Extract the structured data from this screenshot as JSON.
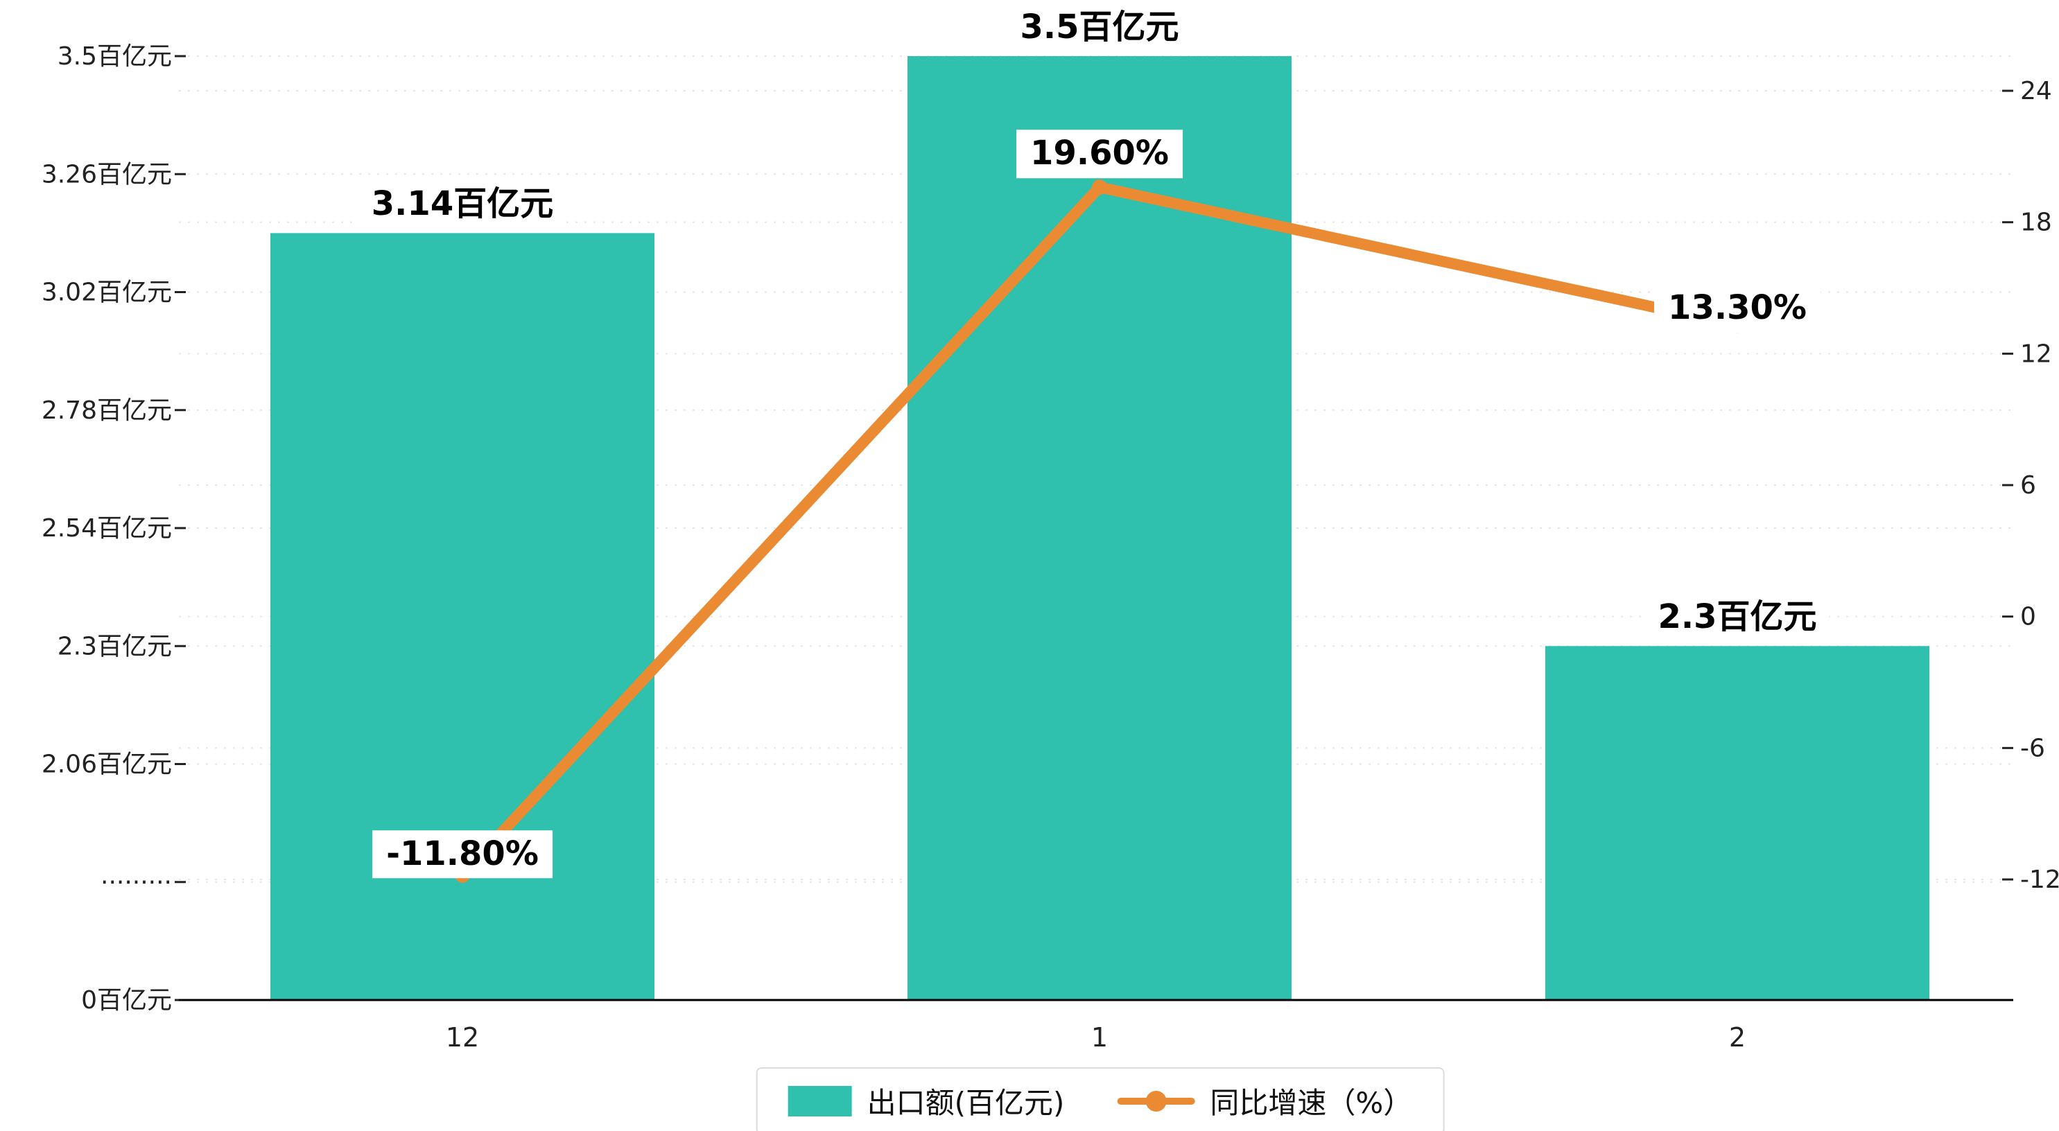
{
  "chart_data": {
    "type": "bar+line",
    "categories": [
      "12",
      "1",
      "2"
    ],
    "series": [
      {
        "name": "出口额(百亿元)",
        "type": "bar",
        "axis": "left",
        "values": [
          3.14,
          3.5,
          2.3
        ],
        "labels": [
          "3.14百亿元",
          "3.5百亿元",
          "2.3百亿元"
        ],
        "color": "#2fc0ae"
      },
      {
        "name": "同比增速（%）",
        "type": "line",
        "axis": "right",
        "values": [
          -11.8,
          19.6,
          13.3
        ],
        "labels": [
          "-11.80%",
          "19.60%",
          "13.30%"
        ],
        "color": "#ea8b33"
      }
    ],
    "left_axis": {
      "tick_labels": [
        "3.5百亿元",
        "3.26百亿元",
        "3.02百亿元",
        "2.78百亿元",
        "2.54百亿元",
        "2.3百亿元",
        "2.06百亿元",
        "·········",
        "0百亿元"
      ],
      "tick_values": [
        3.5,
        3.26,
        3.02,
        2.78,
        2.54,
        2.3,
        2.06,
        null,
        0
      ],
      "axis_break": true
    },
    "right_axis": {
      "tick_labels": [
        "24",
        "18",
        "12",
        "6",
        "0",
        "-6",
        "-12"
      ],
      "tick_values": [
        24,
        18,
        12,
        6,
        0,
        -6,
        -12
      ],
      "range": [
        -12,
        24
      ]
    },
    "grid": "dashed",
    "legend_position": "bottom-center",
    "colors": {
      "bar": "#2fc0ae",
      "line": "#ea8b33",
      "axis_text": "#222222",
      "gridline": "#e4e4e4"
    }
  }
}
